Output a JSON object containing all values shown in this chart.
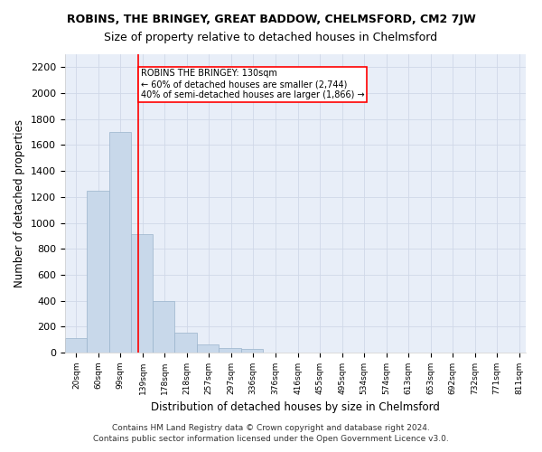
{
  "title": "ROBINS, THE BRINGEY, GREAT BADDOW, CHELMSFORD, CM2 7JW",
  "subtitle": "Size of property relative to detached houses in Chelmsford",
  "xlabel": "Distribution of detached houses by size in Chelmsford",
  "ylabel": "Number of detached properties",
  "bar_color": "#c8d8ea",
  "bar_edgecolor": "#9ab4cc",
  "vline_x": 130,
  "vline_color": "red",
  "annotation_text": "ROBINS THE BRINGEY: 130sqm\n← 60% of detached houses are smaller (2,744)\n40% of semi-detached houses are larger (1,866) →",
  "annotation_box_color": "white",
  "annotation_box_edgecolor": "red",
  "categories": [
    "20sqm",
    "60sqm",
    "99sqm",
    "139sqm",
    "178sqm",
    "218sqm",
    "257sqm",
    "297sqm",
    "336sqm",
    "376sqm",
    "416sqm",
    "455sqm",
    "495sqm",
    "534sqm",
    "574sqm",
    "613sqm",
    "653sqm",
    "692sqm",
    "732sqm",
    "771sqm",
    "811sqm"
  ],
  "bin_edges": [
    0,
    39,
    79,
    118,
    157,
    196,
    236,
    275,
    314,
    353,
    392,
    432,
    471,
    510,
    549,
    588,
    628,
    667,
    706,
    745,
    784,
    823
  ],
  "bin_centers": [
    20,
    59,
    99,
    139,
    178,
    218,
    257,
    297,
    336,
    376,
    416,
    455,
    495,
    534,
    574,
    613,
    653,
    692,
    732,
    771,
    811
  ],
  "values": [
    110,
    1250,
    1700,
    910,
    395,
    155,
    65,
    35,
    25,
    0,
    0,
    0,
    0,
    0,
    0,
    0,
    0,
    0,
    0,
    0,
    0
  ],
  "ylim": [
    0,
    2300
  ],
  "yticks": [
    0,
    200,
    400,
    600,
    800,
    1000,
    1200,
    1400,
    1600,
    1800,
    2000,
    2200
  ],
  "grid_color": "#d0d8e8",
  "bg_color": "#e8eef8",
  "title_fontsize": 9,
  "subtitle_fontsize": 9,
  "footer1": "Contains HM Land Registry data © Crown copyright and database right 2024.",
  "footer2": "Contains public sector information licensed under the Open Government Licence v3.0."
}
